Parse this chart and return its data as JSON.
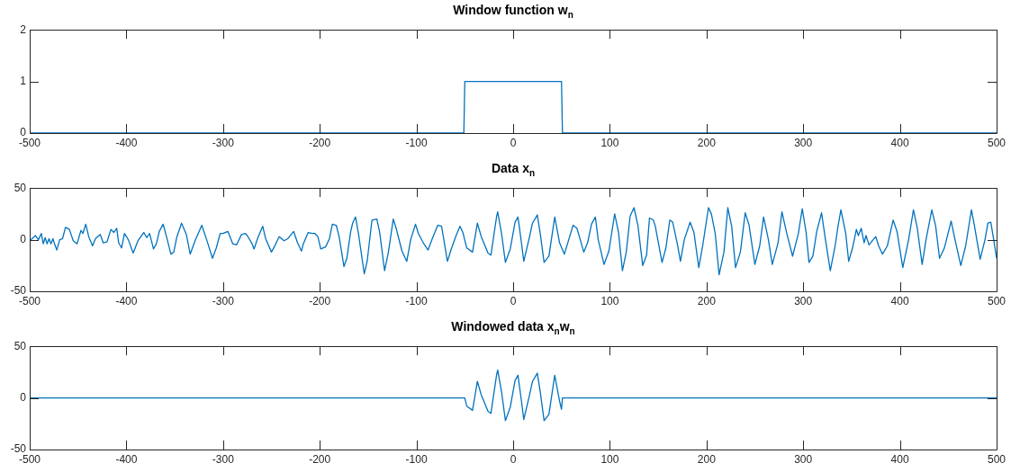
{
  "chart_data": [
    {
      "type": "line",
      "title": "Window function w$_{n}$",
      "color": "#0072bd",
      "marker": "none",
      "line_style": "solid",
      "xlim": [
        -500,
        500
      ],
      "xticks": [
        -500,
        -400,
        -300,
        -200,
        -100,
        0,
        100,
        200,
        300,
        400,
        500
      ],
      "ylim": [
        0,
        2
      ],
      "yticks": [
        0,
        1,
        2
      ],
      "x": [
        -500,
        -51,
        -50,
        50,
        51,
        500
      ],
      "values": [
        0,
        0,
        1,
        1,
        0,
        0
      ]
    },
    {
      "type": "line",
      "title": "Data x$_{n}$",
      "color": "#0072bd",
      "marker": "none",
      "line_style": "solid",
      "xlim": [
        -500,
        500
      ],
      "xticks": [
        -500,
        -400,
        -300,
        -200,
        -100,
        0,
        100,
        200,
        300,
        400,
        500
      ],
      "ylim": [
        -50,
        50
      ],
      "yticks": [
        -50,
        0,
        50
      ],
      "x": [
        -500,
        -494,
        -491,
        -488,
        -486,
        -484,
        -482,
        -480,
        -478,
        -476,
        -474,
        -472,
        -469,
        -466,
        -463,
        -459,
        -455,
        -451,
        -447,
        -445,
        -442,
        -439,
        -435,
        -432,
        -427,
        -424,
        -420,
        -416,
        -413,
        -410,
        -408,
        -405,
        -402,
        -398,
        -393,
        -388,
        -382,
        -379,
        -376,
        -372,
        -369,
        -366,
        -362,
        -358,
        -354,
        -351,
        -348,
        -343,
        -338,
        -334,
        -329,
        -322,
        -317,
        -311,
        -307,
        -303,
        -300,
        -295,
        -290,
        -286,
        -281,
        -277,
        -275,
        -270,
        -268,
        -264,
        -259,
        -256,
        -250,
        -246,
        -242,
        -237,
        -233,
        -227,
        -223,
        -219,
        -217,
        -212,
        -208,
        -205,
        -202,
        -199,
        -194,
        -190,
        -187,
        -183,
        -180,
        -175,
        -172,
        -168,
        -166,
        -163,
        -160,
        -154,
        -151,
        -146,
        -141,
        -138,
        -133,
        -129,
        -124,
        -121,
        -115,
        -110,
        -106,
        -101,
        -98,
        -93,
        -88,
        -84,
        -78,
        -74,
        -68,
        -64,
        -59,
        -55,
        -52,
        -48,
        -42,
        -37,
        -33,
        -26,
        -23,
        -17,
        -16,
        -12,
        -8,
        -3,
        2,
        5,
        9,
        11,
        17,
        20,
        25,
        28,
        32,
        37,
        43,
        48,
        53,
        62,
        66,
        70,
        73,
        77,
        81,
        85,
        88,
        94,
        99,
        105,
        109,
        113,
        117,
        121,
        125,
        129,
        134,
        138,
        141,
        145,
        147,
        154,
        158,
        162,
        165,
        170,
        173,
        177,
        183,
        187,
        192,
        196,
        202,
        205,
        209,
        213,
        218,
        222,
        226,
        230,
        235,
        240,
        244,
        250,
        255,
        259,
        264,
        268,
        274,
        278,
        283,
        289,
        295,
        299,
        303,
        306,
        310,
        314,
        319,
        323,
        328,
        333,
        336,
        339,
        344,
        347,
        351,
        355,
        357,
        360,
        363,
        365,
        368,
        375,
        378,
        382,
        387,
        393,
        397,
        403,
        409,
        414,
        418,
        423,
        427,
        433,
        437,
        441,
        446,
        453,
        457,
        463,
        468,
        474,
        477,
        483,
        488,
        491,
        494,
        497,
        500
      ],
      "values": [
        -1,
        4,
        0,
        6,
        -4,
        2,
        -4,
        1,
        -4,
        1,
        -5,
        -10,
        0,
        1,
        12,
        10,
        -1,
        -4,
        9,
        6,
        15,
        3,
        -6,
        1,
        5,
        -3,
        -2,
        10,
        7,
        11,
        -3,
        -8,
        6,
        0,
        -13,
        -1,
        7,
        2,
        6,
        -9,
        -4,
        8,
        15,
        1,
        -14,
        -12,
        2,
        16,
        5,
        -14,
        -1,
        14,
        0,
        -18,
        -8,
        6,
        6,
        8,
        -4,
        -5,
        5,
        6,
        4,
        -4,
        -9,
        2,
        13,
        1,
        -12,
        -5,
        3,
        -1,
        1,
        8,
        -3,
        -11,
        -4,
        7,
        6,
        6,
        3,
        -9,
        -7,
        1,
        15,
        14,
        3,
        -26,
        -18,
        8,
        16,
        22,
        6,
        -33,
        -21,
        19,
        20,
        7,
        -30,
        -12,
        20,
        11,
        -11,
        -21,
        0,
        15,
        6,
        -3,
        -10,
        0,
        14,
        13,
        -21,
        -9,
        4,
        13,
        7,
        -8,
        -12,
        16,
        3,
        -13,
        -15,
        23,
        27,
        6,
        -22,
        -9,
        17,
        22,
        -6,
        -21,
        3,
        16,
        24,
        6,
        -22,
        -16,
        22,
        -3,
        -14,
        14,
        11,
        -2,
        -12,
        -3,
        15,
        22,
        0,
        -24,
        -11,
        25,
        7,
        -30,
        -12,
        23,
        31,
        14,
        -25,
        -15,
        21,
        19,
        13,
        -22,
        -8,
        19,
        17,
        -5,
        -21,
        0,
        17,
        7,
        -27,
        -6,
        31,
        25,
        6,
        -34,
        -12,
        31,
        13,
        -27,
        -12,
        26,
        14,
        -24,
        -6,
        22,
        0,
        -24,
        -3,
        27,
        6,
        -16,
        6,
        30,
        7,
        -22,
        -16,
        8,
        26,
        0,
        -30,
        -6,
        13,
        29,
        6,
        -21,
        -8,
        10,
        4,
        11,
        -3,
        4,
        -5,
        3,
        -6,
        -14,
        -6,
        19,
        8,
        -27,
        0,
        29,
        11,
        -24,
        0,
        29,
        13,
        -18,
        -8,
        18,
        0,
        -25,
        -6,
        29,
        14,
        -19,
        0,
        16,
        17,
        0,
        -18
      ]
    },
    {
      "type": "line",
      "title": "Windowed data x$_{n}$w$_{n}$",
      "color": "#0072bd",
      "marker": "none",
      "line_style": "solid",
      "xlim": [
        -500,
        500
      ],
      "xticks": [
        -500,
        -400,
        -300,
        -200,
        -100,
        0,
        100,
        200,
        300,
        400,
        500
      ],
      "ylim": [
        -50,
        50
      ],
      "yticks": [
        -50,
        0,
        50
      ],
      "x": [
        -500,
        -50,
        -48,
        -42,
        -37,
        -33,
        -26,
        -23,
        -17,
        -16,
        -12,
        -8,
        -3,
        2,
        5,
        9,
        11,
        17,
        20,
        25,
        28,
        32,
        37,
        43,
        48,
        50,
        51,
        500
      ],
      "values": [
        0,
        0,
        -8,
        -12,
        16,
        3,
        -13,
        -15,
        23,
        27,
        6,
        -22,
        -9,
        17,
        22,
        -6,
        -21,
        3,
        16,
        24,
        6,
        -22,
        -16,
        22,
        -3,
        -11,
        0,
        0
      ]
    }
  ]
}
